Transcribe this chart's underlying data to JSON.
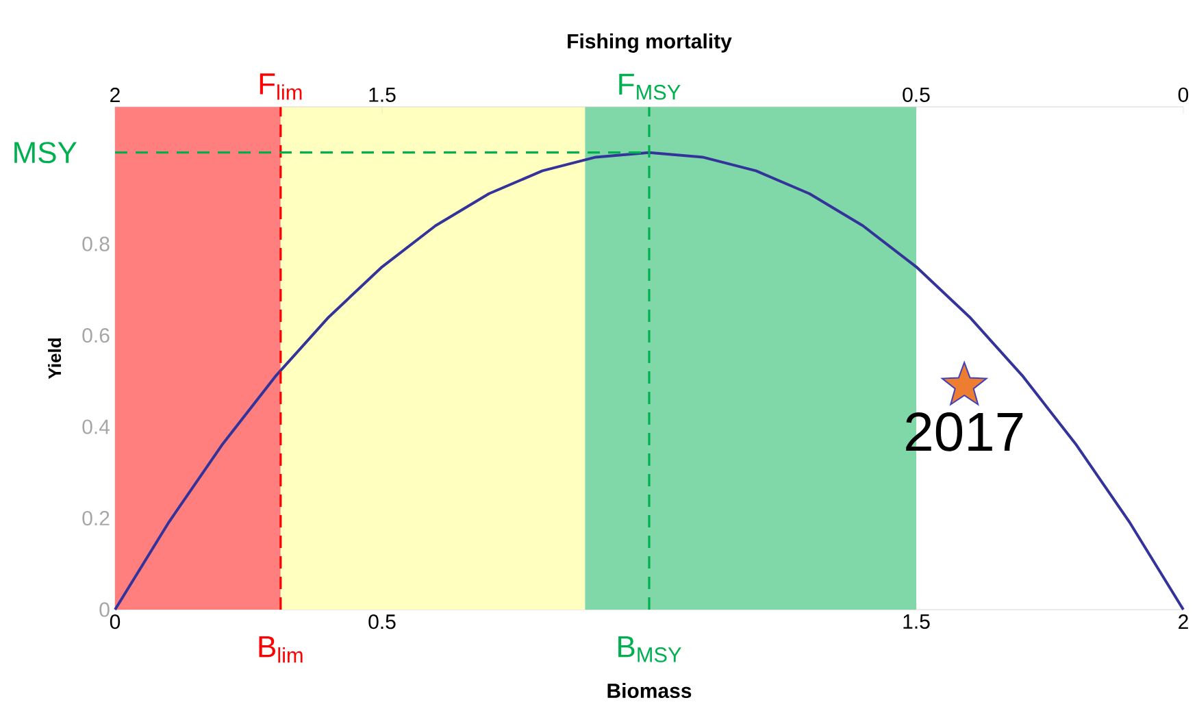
{
  "chart_data": {
    "type": "line",
    "xlabel": "Biomass",
    "x2label": "Fishing mortality",
    "ylabel": "Yield",
    "xlim": [
      0,
      2
    ],
    "xticks": [
      0,
      0.5,
      1.5,
      2
    ],
    "x2lim": [
      2,
      0
    ],
    "x2ticks": [
      2,
      1.5,
      0.5,
      0
    ],
    "ylim": [
      0,
      1.1
    ],
    "yticks": [
      0,
      0.2,
      0.4,
      0.6,
      0.8
    ],
    "series": [
      {
        "color": "#33339a",
        "x": [
          0,
          0.1,
          0.2,
          0.3,
          0.4,
          0.5,
          0.6,
          0.7,
          0.8,
          0.9,
          1,
          1.1,
          1.2,
          1.3,
          1.4,
          1.5,
          1.6,
          1.7,
          1.8,
          1.9,
          2
        ],
        "values": [
          0,
          0.19,
          0.36,
          0.51,
          0.64,
          0.75,
          0.84,
          0.91,
          0.96,
          0.99,
          1,
          0.99,
          0.96,
          0.91,
          0.84,
          0.75,
          0.64,
          0.51,
          0.36,
          0.19,
          0
        ]
      },
      {
        "type": "scatter",
        "marker": "star",
        "color": "#ed7d31",
        "x": [
          1.59
        ],
        "values": [
          0.49
        ]
      }
    ],
    "bands": [
      {
        "axis": "x",
        "from": 0,
        "to": 0.31,
        "color": "#ff7f7f"
      },
      {
        "axis": "x",
        "from": 0.31,
        "to": 0.88,
        "color": "#ffffc0"
      },
      {
        "axis": "x",
        "from": 0.88,
        "to": 1.5,
        "color": "#80d8a8"
      }
    ],
    "ref_lines": [
      {
        "axis": "x",
        "value": 0.31,
        "label": "B$_{lim}$",
        "color": "#ff0000",
        "line_style": "dashed"
      },
      {
        "axis": "x",
        "value": 1,
        "label": "B$_{MSY}$",
        "color": "#00b050",
        "line_style": "dashed"
      },
      {
        "axis": "y",
        "value": 1,
        "label": "MSY",
        "color": "#00b050",
        "line_style": "dashed"
      }
    ],
    "annotations": [
      {
        "text": "2017",
        "x": 1.59,
        "y": 0.49
      },
      {
        "text": "F$_{lim}$",
        "x": 0.31,
        "y": 1.1
      },
      {
        "text": "F$_{MSY}$",
        "x": 1,
        "y": 1.1
      }
    ]
  }
}
